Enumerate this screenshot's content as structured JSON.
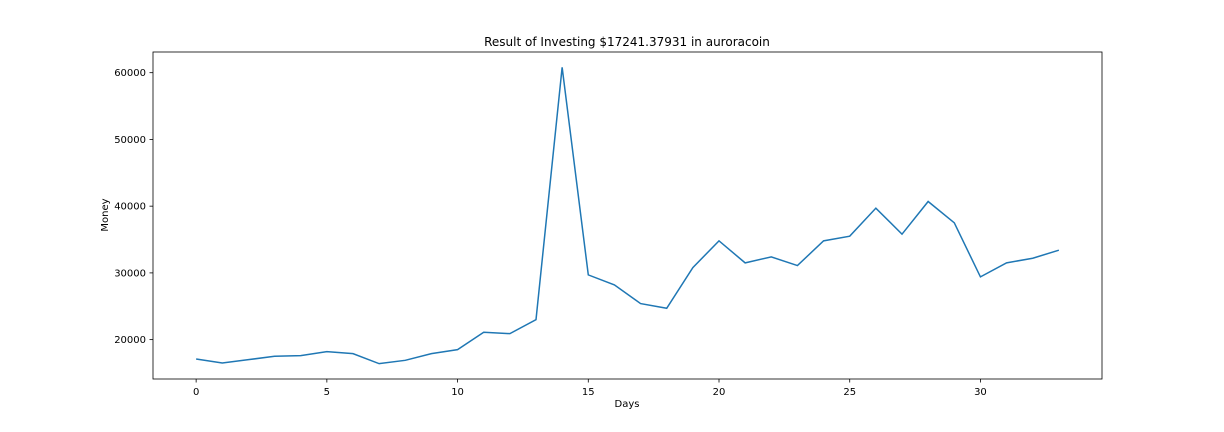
{
  "chart_data": {
    "type": "line",
    "title": "Result of Investing $17241.37931 in auroracoin",
    "xlabel": "Days",
    "ylabel": "Money",
    "xlim": [
      -1.65,
      34.65
    ],
    "ylim": [
      14100,
      63100
    ],
    "xticks": [
      0,
      5,
      10,
      15,
      20,
      25,
      30
    ],
    "yticks": [
      20000,
      30000,
      40000,
      50000,
      60000
    ],
    "grid": false,
    "line_color": "#1f77b4",
    "series": [
      {
        "x": [
          0,
          1,
          2,
          3,
          4,
          5,
          6,
          7,
          8,
          9,
          10,
          11,
          12,
          13,
          14,
          15,
          16,
          17,
          18,
          19,
          20,
          21,
          22,
          23,
          24,
          25,
          26,
          27,
          28,
          29,
          30,
          31,
          32,
          33
        ],
        "values": [
          17100,
          16500,
          17000,
          17500,
          17600,
          18200,
          17900,
          16400,
          16900,
          17900,
          18500,
          21100,
          20900,
          23000,
          60800,
          29700,
          28200,
          25400,
          24700,
          30800,
          34800,
          31500,
          32400,
          31100,
          34800,
          35500,
          39700,
          35800,
          40700,
          37500,
          29400,
          31500,
          32200,
          33400
        ]
      }
    ]
  }
}
